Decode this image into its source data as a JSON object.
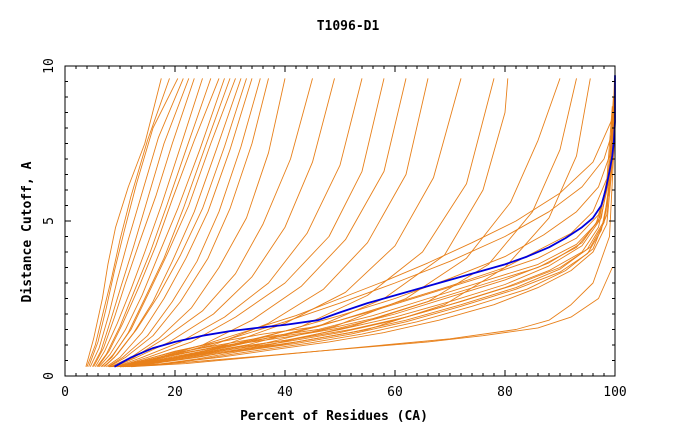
{
  "chart_data": {
    "type": "line",
    "title": "T1096-D1",
    "xlabel": "Percent of Residues (CA)",
    "ylabel": "Distance Cutoff, A",
    "xlim": [
      0,
      100
    ],
    "ylim": [
      0,
      10
    ],
    "xticks": [
      "0",
      "20",
      "40",
      "60",
      "80",
      "100"
    ],
    "yticks": [
      "0",
      "5",
      "10"
    ],
    "grid": false,
    "legend": "none",
    "colors": {
      "others": "#e8801a",
      "highlight": "#0000dd",
      "axis": "#000000"
    },
    "highlight_series": {
      "x": [
        9,
        12,
        16,
        20,
        25,
        30,
        35,
        40,
        46,
        50,
        55,
        60,
        65,
        70,
        75,
        80,
        84,
        88,
        91,
        94,
        96,
        97.5,
        98.3,
        99,
        99.5,
        99.8,
        100,
        100
      ],
      "y": [
        0.3,
        0.6,
        0.9,
        1.1,
        1.3,
        1.45,
        1.55,
        1.65,
        1.8,
        2.05,
        2.35,
        2.6,
        2.85,
        3.1,
        3.35,
        3.6,
        3.85,
        4.15,
        4.45,
        4.8,
        5.1,
        5.5,
        6.0,
        6.6,
        7.1,
        7.6,
        8.2,
        9.7
      ]
    },
    "series": [
      {
        "x": [
          3.8,
          5.2,
          6.8,
          7.8,
          9.2,
          11.5,
          14.5,
          17.5
        ],
        "y": [
          0.3,
          1.2,
          2.5,
          3.6,
          4.8,
          6.1,
          7.5,
          9.6
        ]
      },
      {
        "x": [
          4,
          5.5,
          7,
          8.4,
          10,
          12,
          15,
          19
        ],
        "y": [
          0.3,
          1.0,
          2.1,
          3.1,
          4.4,
          5.8,
          7.6,
          9.6
        ]
      },
      {
        "x": [
          4.3,
          6,
          7.5,
          9,
          10.8,
          13,
          16,
          20.5
        ],
        "y": [
          0.3,
          1.1,
          2.2,
          3.4,
          4.7,
          6.2,
          8.0,
          9.6
        ]
      },
      {
        "x": [
          4.6,
          6.2,
          8,
          9.5,
          11.5,
          14,
          17,
          21.5
        ],
        "y": [
          0.3,
          0.9,
          2.0,
          3.1,
          4.4,
          5.9,
          7.7,
          9.6
        ]
      },
      {
        "x": [
          5,
          6.5,
          8.3,
          10.2,
          12.5,
          15,
          18,
          22.5
        ],
        "y": [
          0.3,
          0.8,
          1.8,
          2.9,
          4.2,
          5.7,
          7.5,
          9.6
        ]
      },
      {
        "x": [
          5.2,
          7,
          9,
          11,
          13.5,
          16.5,
          19.5,
          23.5
        ],
        "y": [
          0.3,
          0.9,
          1.9,
          3.0,
          4.3,
          5.8,
          7.5,
          9.6
        ]
      },
      {
        "x": [
          5.5,
          7.2,
          9.5,
          12,
          14.5,
          17.5,
          21,
          25
        ],
        "y": [
          0.3,
          0.8,
          1.7,
          2.8,
          4.0,
          5.5,
          7.4,
          9.6
        ]
      },
      {
        "x": [
          5.8,
          7.5,
          10,
          12.5,
          15.5,
          18.5,
          22,
          26.5
        ],
        "y": [
          0.3,
          0.7,
          1.6,
          2.7,
          4.0,
          5.5,
          7.3,
          9.6
        ]
      },
      {
        "x": [
          6,
          8,
          10.5,
          13.5,
          16.5,
          19.5,
          23.5,
          28
        ],
        "y": [
          0.3,
          0.8,
          1.7,
          2.9,
          4.2,
          5.7,
          7.6,
          9.6
        ]
      },
      {
        "x": [
          6.2,
          8.2,
          11,
          14,
          17,
          20.5,
          24.5,
          29
        ],
        "y": [
          0.3,
          0.7,
          1.5,
          2.6,
          3.9,
          5.4,
          7.3,
          9.6
        ]
      },
      {
        "x": [
          6.5,
          8.5,
          11.5,
          14.5,
          18,
          21.5,
          25.5,
          30
        ],
        "y": [
          0.3,
          0.6,
          1.4,
          2.5,
          3.8,
          5.4,
          7.4,
          9.6
        ]
      },
      {
        "x": [
          6.7,
          8.8,
          12,
          15,
          18.5,
          22.5,
          26.5,
          31
        ],
        "y": [
          0.3,
          0.7,
          1.5,
          2.6,
          3.9,
          5.5,
          7.5,
          9.6
        ]
      },
      {
        "x": [
          7,
          9,
          12.5,
          16,
          19.5,
          23.5,
          27.5,
          32
        ],
        "y": [
          0.3,
          0.6,
          1.4,
          2.4,
          3.7,
          5.3,
          7.3,
          9.6
        ]
      },
      {
        "x": [
          7.2,
          9.5,
          13,
          17,
          21,
          25,
          29,
          33
        ],
        "y": [
          0.3,
          0.7,
          1.5,
          2.6,
          3.9,
          5.4,
          7.4,
          9.6
        ]
      },
      {
        "x": [
          7.5,
          10,
          14,
          18,
          22,
          26,
          30,
          34
        ],
        "y": [
          0.3,
          0.6,
          1.4,
          2.5,
          3.8,
          5.3,
          7.3,
          9.6
        ]
      },
      {
        "x": [
          7.8,
          10.5,
          15,
          19.5,
          24,
          28,
          32,
          35.5
        ],
        "y": [
          0.3,
          0.6,
          1.3,
          2.4,
          3.7,
          5.3,
          7.4,
          9.6
        ]
      },
      {
        "x": [
          8,
          11,
          16,
          21,
          26,
          30,
          34,
          37
        ],
        "y": [
          0.3,
          0.6,
          1.3,
          2.4,
          3.8,
          5.4,
          7.5,
          9.6
        ]
      },
      {
        "x": [
          8.3,
          12,
          17,
          23,
          28,
          33,
          37,
          40
        ],
        "y": [
          0.3,
          0.6,
          1.2,
          2.2,
          3.5,
          5.1,
          7.2,
          9.6
        ]
      },
      {
        "x": [
          8.6,
          12.5,
          18,
          25,
          31,
          36,
          41,
          45
        ],
        "y": [
          0.3,
          0.6,
          1.2,
          2.1,
          3.3,
          4.9,
          7.0,
          9.6
        ]
      },
      {
        "x": [
          9,
          13,
          19,
          27,
          34,
          40,
          45,
          49
        ],
        "y": [
          0.3,
          0.6,
          1.1,
          2.0,
          3.2,
          4.8,
          6.9,
          9.6
        ]
      },
      {
        "x": [
          9.3,
          14,
          21,
          29,
          37,
          44,
          50,
          54
        ],
        "y": [
          0.3,
          0.6,
          1.1,
          1.9,
          3.0,
          4.6,
          6.8,
          9.6
        ]
      },
      {
        "x": [
          9.6,
          15,
          23,
          31,
          40,
          48,
          54,
          58
        ],
        "y": [
          0.3,
          0.6,
          1.1,
          1.9,
          3.0,
          4.5,
          6.6,
          9.6
        ]
      },
      {
        "x": [
          10,
          16,
          25,
          34,
          43,
          51,
          58,
          62
        ],
        "y": [
          0.3,
          0.6,
          1.0,
          1.8,
          2.9,
          4.4,
          6.6,
          9.6
        ]
      },
      {
        "x": [
          10.3,
          17,
          27,
          37,
          47,
          55,
          62,
          66
        ],
        "y": [
          0.3,
          0.6,
          1.0,
          1.7,
          2.8,
          4.3,
          6.5,
          9.6
        ]
      },
      {
        "x": [
          10.6,
          18,
          29,
          40,
          51,
          60,
          67,
          72
        ],
        "y": [
          0.3,
          0.6,
          1.0,
          1.7,
          2.7,
          4.2,
          6.4,
          9.6
        ]
      },
      {
        "x": [
          11,
          19,
          31,
          43,
          55,
          65,
          73,
          78
        ],
        "y": [
          0.3,
          0.6,
          1.0,
          1.6,
          2.6,
          4.0,
          6.2,
          9.6
        ]
      },
      {
        "x": [
          11.3,
          20,
          33,
          46,
          58,
          69,
          76,
          80,
          80.5
        ],
        "y": [
          0.3,
          0.6,
          1.0,
          1.6,
          2.5,
          3.9,
          6.0,
          8.5,
          9.6
        ]
      },
      {
        "x": [
          11.6,
          21,
          35,
          49,
          62,
          73,
          81,
          86,
          90
        ],
        "y": [
          0.3,
          0.6,
          1.0,
          1.6,
          2.5,
          3.8,
          5.6,
          7.6,
          9.6
        ]
      },
      {
        "x": [
          12,
          22,
          37,
          52,
          66,
          77,
          85,
          90,
          93
        ],
        "y": [
          0.3,
          0.6,
          1.0,
          1.6,
          2.4,
          3.6,
          5.3,
          7.3,
          9.6
        ]
      },
      {
        "x": [
          12.3,
          23,
          39,
          55,
          69,
          80,
          88,
          93,
          95.5
        ],
        "y": [
          0.3,
          0.6,
          1.0,
          1.5,
          2.3,
          3.5,
          5.1,
          7.1,
          9.6
        ]
      },
      {
        "x": [
          9,
          14,
          20,
          28,
          36,
          46,
          56,
          66,
          76,
          86,
          93,
          97,
          99,
          100
        ],
        "y": [
          0.3,
          0.5,
          0.8,
          1.1,
          1.35,
          1.6,
          2.1,
          2.65,
          3.2,
          3.8,
          4.45,
          5.2,
          6.4,
          8.3
        ]
      },
      {
        "x": [
          9,
          14,
          20,
          28,
          36,
          46,
          56,
          66,
          76,
          86,
          93,
          97,
          98.5,
          99.5
        ],
        "y": [
          0.3,
          0.45,
          0.75,
          1.0,
          1.25,
          1.5,
          1.95,
          2.5,
          3.05,
          3.6,
          4.25,
          5.0,
          6.3,
          8.7
        ]
      },
      {
        "x": [
          9,
          14,
          20,
          28,
          36,
          46,
          56,
          66,
          76,
          86,
          93,
          96.5,
          98.5,
          99.7
        ],
        "y": [
          0.3,
          0.4,
          0.7,
          0.95,
          1.2,
          1.45,
          1.85,
          2.4,
          2.95,
          3.5,
          4.15,
          4.9,
          6.0,
          7.3
        ]
      },
      {
        "x": [
          9,
          15,
          22,
          30,
          40,
          50,
          60,
          70,
          80,
          88,
          94,
          97.5,
          99,
          99.8
        ],
        "y": [
          0.3,
          0.4,
          0.65,
          0.9,
          1.15,
          1.5,
          1.9,
          2.4,
          2.95,
          3.55,
          4.2,
          5.1,
          6.6,
          9.0
        ]
      },
      {
        "x": [
          9,
          15,
          22,
          30,
          40,
          50,
          60,
          70,
          80,
          88,
          94,
          97,
          98.8,
          99.6
        ],
        "y": [
          0.3,
          0.4,
          0.6,
          0.85,
          1.1,
          1.4,
          1.8,
          2.3,
          2.85,
          3.4,
          4.0,
          4.8,
          6.2,
          8.0
        ]
      },
      {
        "x": [
          10,
          16,
          24,
          32,
          42,
          52,
          62,
          72,
          82,
          90,
          95,
          98,
          99.4,
          100
        ],
        "y": [
          0.3,
          0.4,
          0.6,
          0.85,
          1.1,
          1.4,
          1.8,
          2.3,
          2.85,
          3.45,
          4.1,
          5.0,
          6.8,
          9.6
        ]
      },
      {
        "x": [
          10,
          16,
          24,
          32,
          42,
          52,
          62,
          72,
          82,
          90,
          95,
          97.5,
          99,
          99.8
        ],
        "y": [
          0.3,
          0.35,
          0.55,
          0.8,
          1.05,
          1.35,
          1.75,
          2.25,
          2.8,
          3.35,
          3.95,
          4.7,
          6.0,
          8.2
        ]
      },
      {
        "x": [
          10,
          17,
          25,
          34,
          44,
          54,
          64,
          74,
          84,
          91,
          96,
          98.5,
          99.5
        ],
        "y": [
          0.3,
          0.35,
          0.55,
          0.8,
          1.05,
          1.35,
          1.75,
          2.25,
          2.8,
          3.4,
          4.1,
          5.2,
          7.6
        ]
      },
      {
        "x": [
          9.5,
          16,
          24,
          32,
          42,
          52,
          62,
          72,
          82,
          90,
          95.5,
          98,
          99.3,
          99.9
        ],
        "y": [
          0.3,
          0.45,
          0.7,
          0.95,
          1.2,
          1.5,
          1.9,
          2.4,
          2.95,
          3.5,
          4.15,
          4.95,
          6.4,
          9.6
        ]
      },
      {
        "x": [
          9.5,
          15,
          22,
          30,
          40,
          50,
          60,
          70,
          80,
          88,
          94,
          97.2,
          98.9,
          99.7
        ],
        "y": [
          0.3,
          0.5,
          0.75,
          1.0,
          1.25,
          1.55,
          2.0,
          2.55,
          3.1,
          3.65,
          4.3,
          5.1,
          6.6,
          9.0
        ]
      },
      {
        "x": [
          10.5,
          18,
          28,
          38,
          48,
          58,
          68,
          78,
          86,
          92,
          96,
          98.5,
          99.6
        ],
        "y": [
          0.3,
          0.4,
          0.6,
          0.85,
          1.1,
          1.4,
          1.8,
          2.3,
          2.85,
          3.4,
          4.0,
          4.9,
          7.0
        ]
      },
      {
        "x": [
          10,
          20,
          30,
          40,
          50,
          60,
          70,
          80,
          86,
          92,
          96,
          98.6,
          99.9
        ],
        "y": [
          0.3,
          0.6,
          0.95,
          1.35,
          1.8,
          2.35,
          2.9,
          3.5,
          4.05,
          4.6,
          5.3,
          6.4,
          8.0
        ]
      },
      {
        "x": [
          10.5,
          20,
          30,
          40,
          50,
          60,
          70,
          80,
          87,
          93,
          97,
          99,
          100
        ],
        "y": [
          0.3,
          0.6,
          1.0,
          1.45,
          1.95,
          2.5,
          3.15,
          3.85,
          4.55,
          5.3,
          6.1,
          7.1,
          8.6
        ]
      },
      {
        "x": [
          10,
          18,
          26,
          34,
          42,
          50,
          58,
          66,
          74,
          82,
          90,
          96,
          99.5
        ],
        "y": [
          0.3,
          0.65,
          1.05,
          1.5,
          1.95,
          2.5,
          3.05,
          3.65,
          4.3,
          5.0,
          5.9,
          6.9,
          8.3
        ]
      },
      {
        "x": [
          11,
          20,
          30,
          40,
          50,
          60,
          70,
          80,
          88,
          94,
          98,
          99.4,
          99.9
        ],
        "y": [
          0.3,
          0.7,
          1.2,
          1.75,
          2.35,
          3.0,
          3.7,
          4.5,
          5.3,
          6.1,
          7.0,
          7.8,
          8.7
        ]
      },
      {
        "x": [
          8,
          16,
          26,
          36,
          46,
          56,
          66,
          76,
          86,
          92,
          97,
          99.5
        ],
        "y": [
          0.3,
          0.35,
          0.5,
          0.65,
          0.8,
          0.95,
          1.1,
          1.3,
          1.55,
          1.9,
          2.5,
          3.5
        ]
      },
      {
        "x": [
          12,
          22,
          34,
          46,
          58,
          70,
          82,
          88,
          92,
          96,
          99,
          100
        ],
        "y": [
          0.3,
          0.4,
          0.6,
          0.8,
          1.0,
          1.2,
          1.5,
          1.8,
          2.3,
          3.0,
          4.5,
          8.0
        ]
      }
    ]
  }
}
